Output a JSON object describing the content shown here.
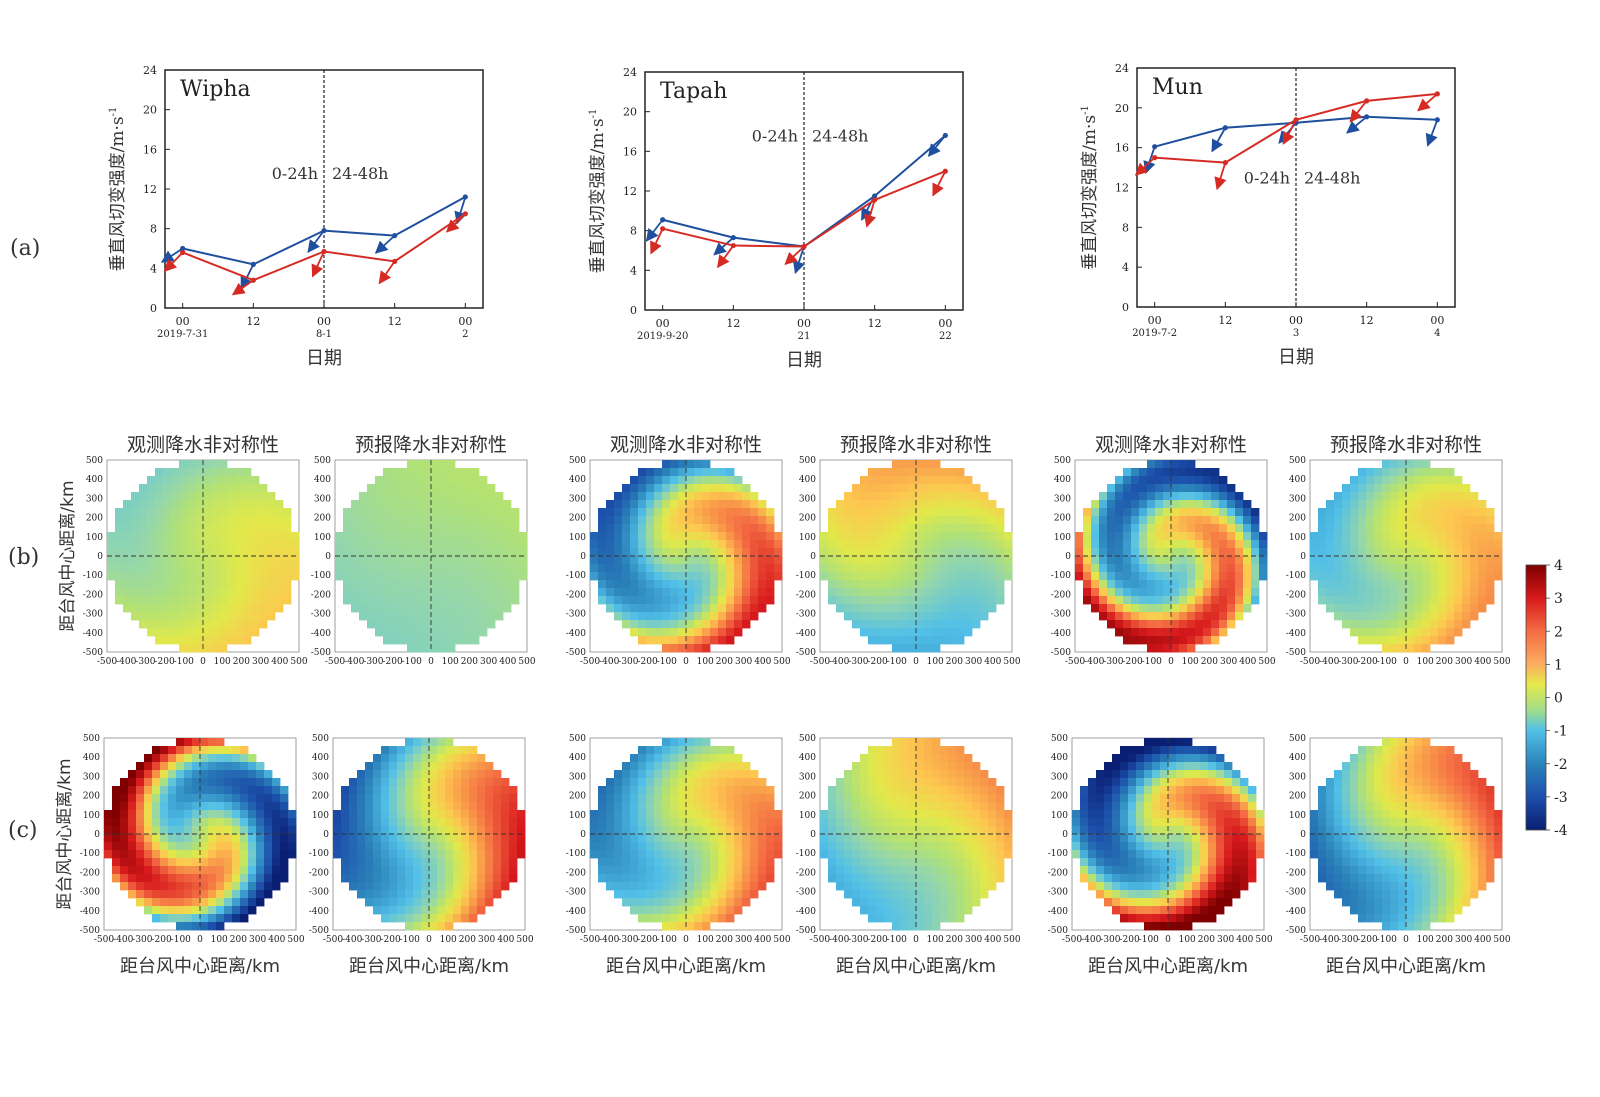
{
  "row_labels": {
    "a": "(a)",
    "b": "(b)",
    "c": "(c)"
  },
  "colors": {
    "blue_series": "#1f4f9e",
    "red_series": "#d62b24"
  },
  "shear_text": {
    "ylabel": "垂直风切变强度/m·s",
    "ylabel_sup": "-1",
    "xlabel_wipha": "日期",
    "xlabel_tapah": "日期",
    "xlabel_mun": "日期",
    "period1": "0-24h",
    "period2": "24-48h"
  },
  "asym_text": {
    "obs_title": "观测降水非对称性",
    "fcst_title": "预报降水非对称性",
    "ylabel": "距台风中心距离/km",
    "xlabel": "距台风中心距离/km",
    "colorbar_ticks": [
      "4",
      "3",
      "2",
      "1",
      "0",
      "-1",
      "-2",
      "-3",
      "-4"
    ]
  },
  "chart_data": [
    {
      "type": "line",
      "title": "Wipha",
      "xlabel": "日期",
      "ylabel": "垂直风切变强度/m·s-1",
      "ylim": [
        0,
        24
      ],
      "yticks": [
        "0",
        "4",
        "8",
        "12",
        "16",
        "20",
        "24"
      ],
      "xlim": [
        -3,
        51
      ],
      "xticks": [
        {
          "x": 0,
          "top": "00",
          "bottom": "2019-7-31"
        },
        {
          "x": 12,
          "top": "12",
          "bottom": ""
        },
        {
          "x": 24,
          "top": "00",
          "bottom": "8-1"
        },
        {
          "x": 36,
          "top": "12",
          "bottom": ""
        },
        {
          "x": 48,
          "top": "00",
          "bottom": "2"
        }
      ],
      "divider_x": 24,
      "series": [
        {
          "color": "blue",
          "x": [
            0,
            12,
            24,
            36,
            48
          ],
          "values": [
            6.0,
            4.4,
            7.8,
            7.3,
            11.2
          ]
        },
        {
          "color": "red",
          "x": [
            0,
            12,
            24,
            36,
            48
          ],
          "values": [
            5.6,
            2.8,
            5.7,
            4.7,
            9.5
          ]
        }
      ]
    },
    {
      "type": "line",
      "title": "Tapah",
      "xlabel": "日期",
      "ylabel": "垂直风切变强度/m·s-1",
      "ylim": [
        0,
        24
      ],
      "yticks": [
        "0",
        "4",
        "8",
        "12",
        "16",
        "20",
        "24"
      ],
      "xlim": [
        -3,
        51
      ],
      "xticks": [
        {
          "x": 0,
          "top": "00",
          "bottom": "2019-9-20"
        },
        {
          "x": 12,
          "top": "12",
          "bottom": ""
        },
        {
          "x": 24,
          "top": "00",
          "bottom": "21"
        },
        {
          "x": 36,
          "top": "12",
          "bottom": ""
        },
        {
          "x": 48,
          "top": "00",
          "bottom": "22"
        }
      ],
      "divider_x": 24,
      "series": [
        {
          "color": "blue",
          "x": [
            0,
            12,
            24,
            36,
            48
          ],
          "values": [
            9.1,
            7.3,
            6.4,
            11.5,
            17.6
          ]
        },
        {
          "color": "red",
          "x": [
            0,
            12,
            24,
            36,
            48
          ],
          "values": [
            8.2,
            6.5,
            6.4,
            11.1,
            14.0
          ]
        }
      ]
    },
    {
      "type": "line",
      "title": "Mun",
      "xlabel": "日期",
      "ylabel": "垂直风切变强度/m·s-1",
      "ylim": [
        0,
        24
      ],
      "yticks": [
        "0",
        "4",
        "8",
        "12",
        "16",
        "20",
        "24"
      ],
      "xlim": [
        -3,
        51
      ],
      "xticks": [
        {
          "x": 0,
          "top": "00",
          "bottom": "2019-7-2"
        },
        {
          "x": 12,
          "top": "12",
          "bottom": ""
        },
        {
          "x": 24,
          "top": "00",
          "bottom": "3"
        },
        {
          "x": 36,
          "top": "12",
          "bottom": ""
        },
        {
          "x": 48,
          "top": "00",
          "bottom": "4"
        }
      ],
      "divider_x": 24,
      "series": [
        {
          "color": "blue",
          "x": [
            0,
            12,
            24,
            36,
            48
          ],
          "values": [
            16.1,
            18.0,
            18.5,
            19.1,
            18.8
          ]
        },
        {
          "color": "red",
          "x": [
            0,
            12,
            24,
            36,
            48
          ],
          "values": [
            15.0,
            14.5,
            18.8,
            20.7,
            21.4
          ]
        }
      ]
    },
    {
      "type": "heatmap",
      "description_type": "polar-field",
      "xlim": [
        -500,
        500
      ],
      "ylim": [
        -500,
        500
      ],
      "ticks": [
        "-500",
        "-400",
        "-300",
        "-200",
        "-100",
        "0",
        "100",
        "200",
        "300",
        "400",
        "500"
      ],
      "colorbar_range": [
        -4,
        4
      ],
      "panels": [
        {
          "row": "b",
          "storm": "Wipha",
          "title": "观测降水非对称性",
          "amp": 0.8,
          "phase": 40,
          "spiral": 0.5,
          "base": 0.2
        },
        {
          "row": "b",
          "storm": "Wipha",
          "title": "预报降水非对称性",
          "amp": 0.3,
          "phase": 90,
          "spiral": 0.2,
          "base": -0.2
        },
        {
          "row": "b",
          "storm": "Tapah",
          "title": "观测降水非对称性",
          "amp": 3.2,
          "phase": 130,
          "spiral": 1.0,
          "base": 0
        },
        {
          "row": "b",
          "storm": "Tapah",
          "title": "预报降水非对称性",
          "amp": 1.4,
          "phase": 160,
          "spiral": 0.4,
          "base": 0.1
        },
        {
          "row": "b",
          "storm": "Mun",
          "title": "观测降水非对称性",
          "amp": 3.8,
          "phase": 150,
          "spiral": 1.6,
          "base": 0
        },
        {
          "row": "b",
          "storm": "Mun",
          "title": "预报降水非对称性",
          "amp": 1.5,
          "phase": 90,
          "spiral": 0.7,
          "base": 0.2
        },
        {
          "row": "c",
          "storm": "Wipha",
          "title": "",
          "amp": 4.5,
          "phase": 10,
          "spiral": 1.3,
          "base": 0
        },
        {
          "row": "c",
          "storm": "Wipha",
          "title": "",
          "amp": 3.2,
          "phase": 60,
          "spiral": 0.4,
          "base": 0
        },
        {
          "row": "c",
          "storm": "Tapah",
          "title": "",
          "amp": 2.4,
          "phase": 80,
          "spiral": 0.6,
          "base": 0
        },
        {
          "row": "c",
          "storm": "Tapah",
          "title": "",
          "amp": 1.5,
          "phase": 90,
          "spiral": 0.3,
          "base": 0.2
        },
        {
          "row": "c",
          "storm": "Mun",
          "title": "",
          "amp": 4.5,
          "phase": 120,
          "spiral": 1.1,
          "base": 0
        },
        {
          "row": "c",
          "storm": "Mun",
          "title": "",
          "amp": 2.6,
          "phase": 90,
          "spiral": 0.4,
          "base": 0
        }
      ]
    }
  ]
}
